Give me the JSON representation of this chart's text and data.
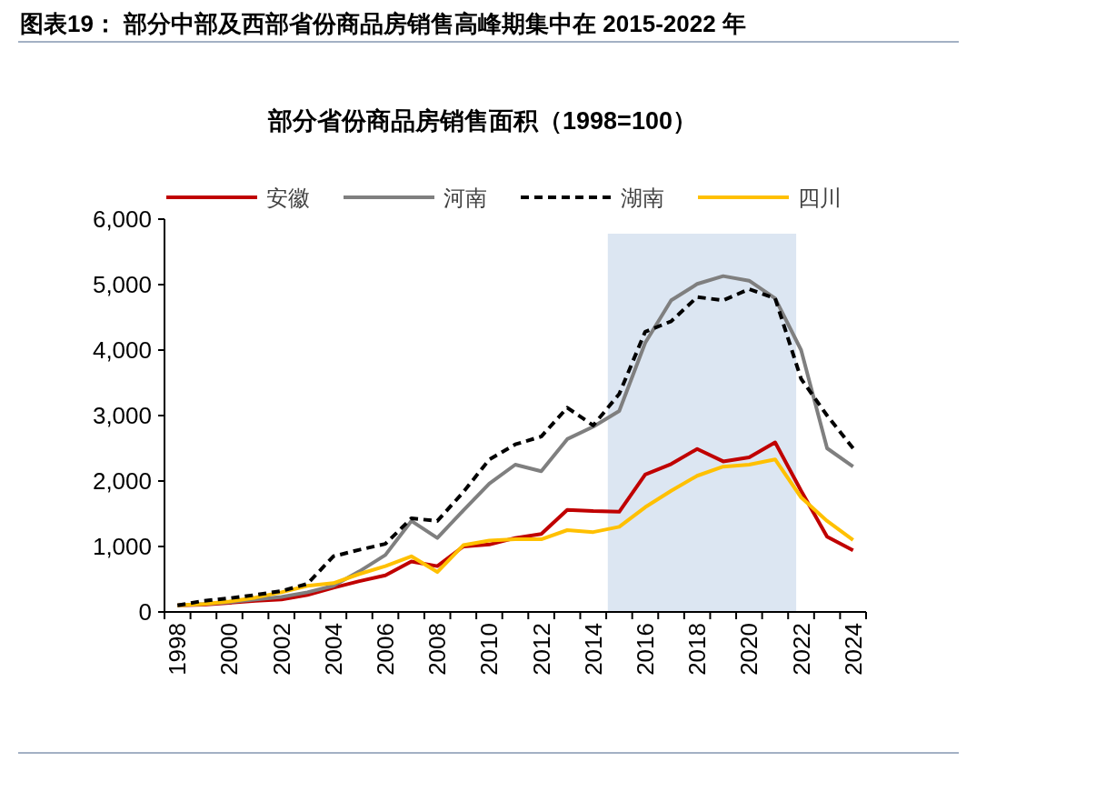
{
  "chart_data": {
    "type": "line",
    "title": "图表19：  部分中部及西部省份商品房销售高峰期集中在 2015-2022 年",
    "subtitle": "部分省份商品房销售面积（1998=100）",
    "categories": [
      "1998",
      null,
      "2000",
      null,
      "2002",
      null,
      "2004",
      null,
      "2006",
      null,
      "2008",
      null,
      "2010",
      null,
      "2012",
      null,
      "2014",
      null,
      "2016",
      null,
      "2018",
      null,
      "2020",
      null,
      "2022",
      null,
      "2024"
    ],
    "ylim": [
      0,
      6000
    ],
    "yticks": [
      0,
      {
        "value": 1000,
        "label": "1,000"
      },
      {
        "value": 2000,
        "label": "2,000"
      },
      {
        "value": 3000,
        "label": "3,000"
      },
      {
        "value": 4000,
        "label": "4,000"
      },
      {
        "value": 5000,
        "label": "5,000"
      },
      {
        "value": 6000,
        "label": "6,000"
      }
    ],
    "grid": false,
    "legend": "top",
    "series": [
      {
        "name": "安徽",
        "color": "#c00000",
        "line_style": "solid",
        "values": [
          100,
          110,
          140,
          170,
          190,
          260,
          370,
          470,
          560,
          770,
          700,
          1000,
          1030,
          1130,
          1190,
          1560,
          1540,
          1530,
          2100,
          2260,
          2490,
          2300,
          2360,
          2590,
          1850,
          1150,
          940
        ]
      },
      {
        "name": "河南",
        "color": "#7f7f7f",
        "line_style": "solid",
        "values": [
          100,
          120,
          150,
          190,
          230,
          300,
          400,
          620,
          870,
          1390,
          1130,
          1550,
          1960,
          2250,
          2150,
          2640,
          2830,
          3070,
          4110,
          4760,
          5010,
          5130,
          5060,
          4790,
          4000,
          2500,
          2220
        ]
      },
      {
        "name": "湖南",
        "color": "#000000",
        "line_style": "dashed",
        "values": [
          100,
          170,
          210,
          260,
          320,
          430,
          850,
          950,
          1040,
          1430,
          1390,
          1830,
          2330,
          2560,
          2680,
          3120,
          2850,
          3330,
          4280,
          4440,
          4810,
          4760,
          4930,
          4790,
          3560,
          3000,
          2500
        ]
      },
      {
        "name": "四川",
        "color": "#ffc000",
        "line_style": "solid",
        "values": [
          100,
          120,
          160,
          220,
          300,
          400,
          440,
          580,
          700,
          850,
          610,
          1020,
          1090,
          1110,
          1110,
          1250,
          1220,
          1300,
          1600,
          1850,
          2080,
          2220,
          2250,
          2330,
          1750,
          1390,
          1100
        ]
      }
    ]
  }
}
